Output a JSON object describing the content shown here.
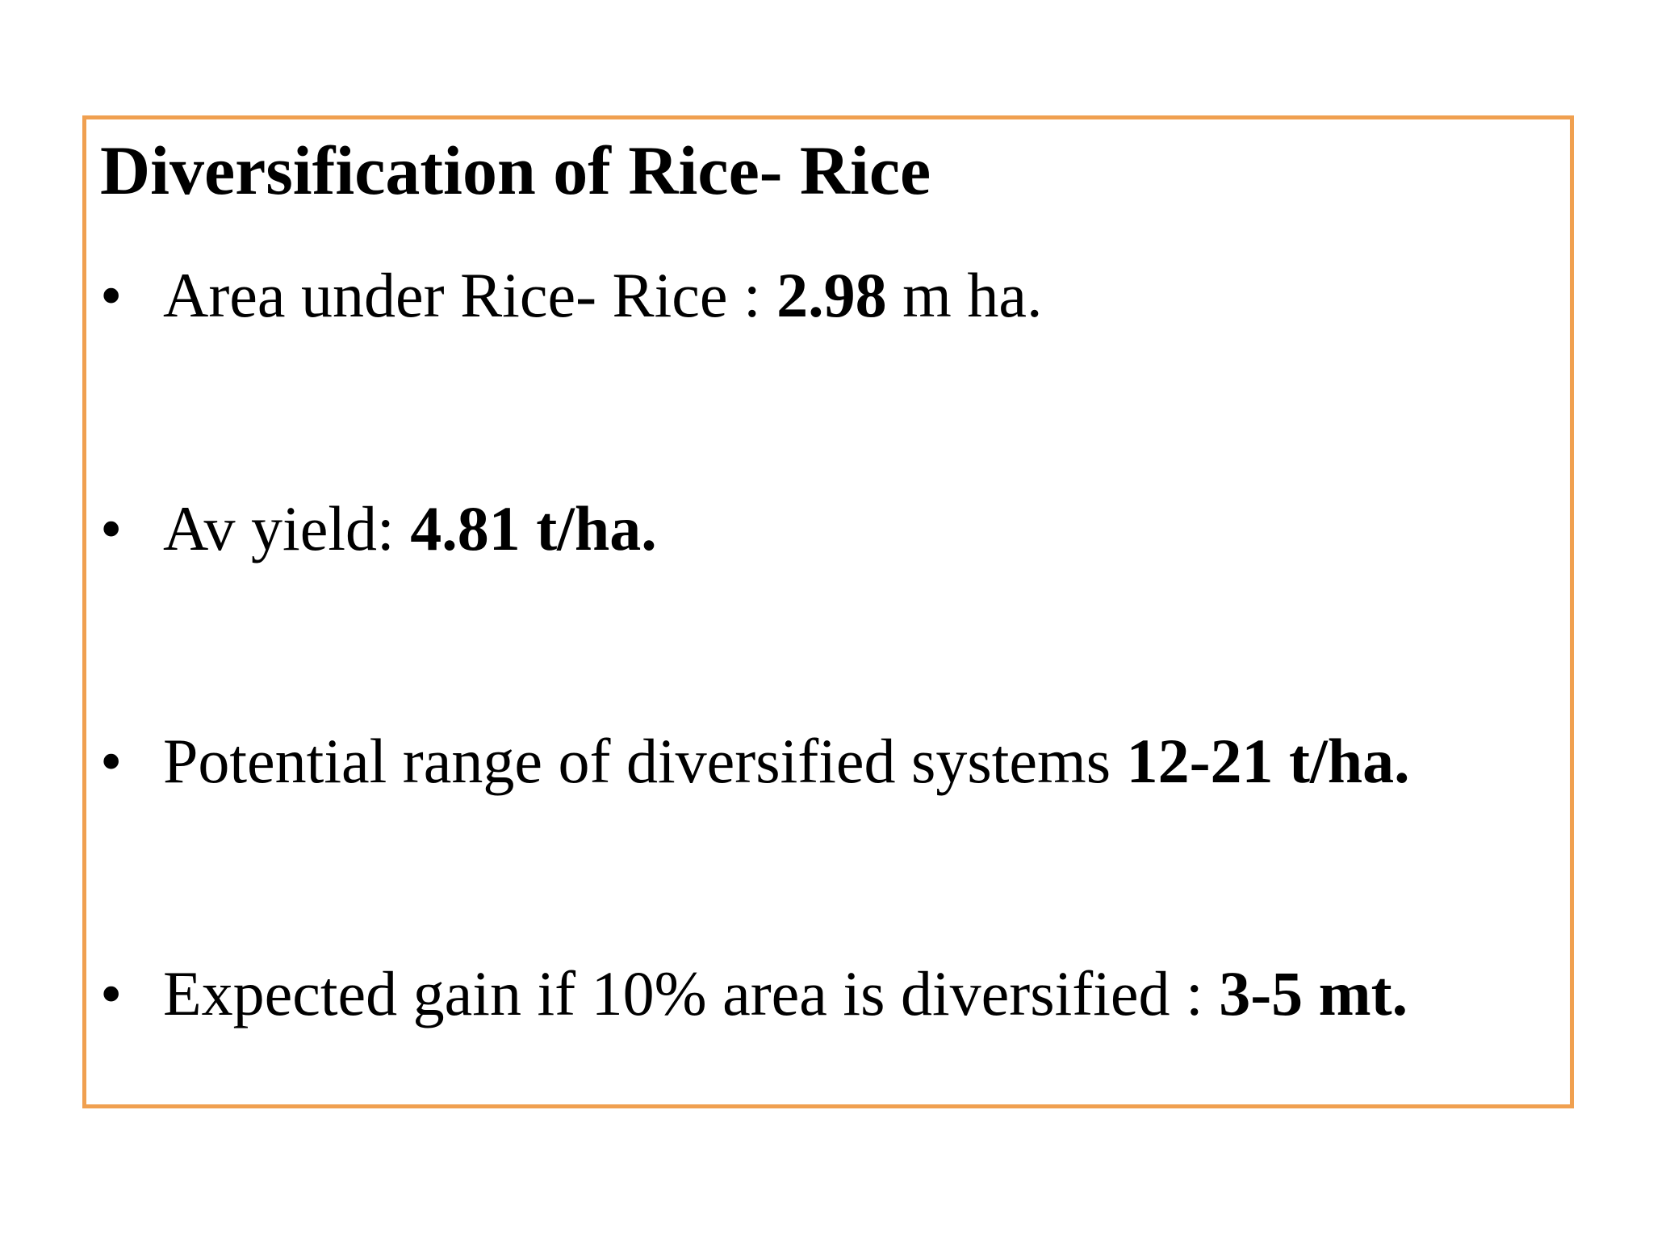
{
  "title": "Diversification of Rice- Rice",
  "bullet_glyph": "•",
  "colors": {
    "frame": "#f0a050"
  },
  "items": [
    {
      "pre": "Area under Rice- Rice : ",
      "bold": "2.98",
      "post": " m ha."
    },
    {
      "pre": "Av yield: ",
      "bold": "4.81 t/ha.",
      "post": ""
    },
    {
      "pre": "Potential range of diversified systems ",
      "bold": "12-21 t/ha.",
      "post": ""
    },
    {
      "pre": "Expected gain if 10% area is diversified : ",
      "bold": "3-5 mt.",
      "post": ""
    }
  ]
}
